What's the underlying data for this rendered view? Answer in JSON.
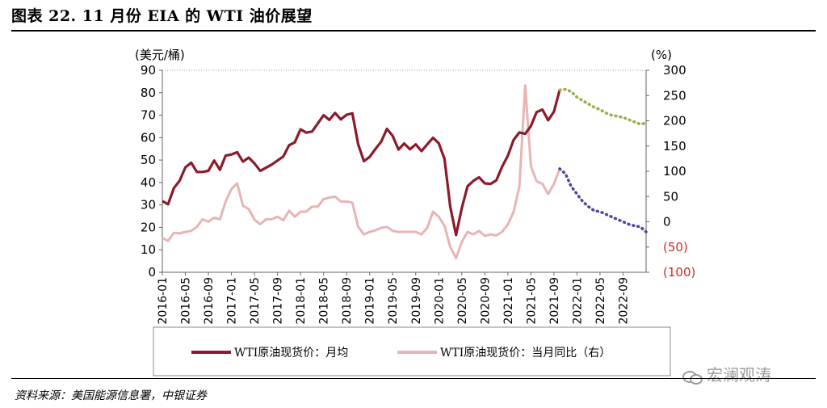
{
  "header": {
    "title": "图表 22. 11 月份 EIA 的 WTI 油价展望"
  },
  "footer": {
    "source": "资料来源：美国能源信息署，中银证券"
  },
  "watermark": {
    "text": "宏澜观涛",
    "icon": "wechat-icon"
  },
  "colors": {
    "wti_price": "#8b1a2b",
    "wti_yoy": "#e8b4b4",
    "forecast_price": "#9aae4c",
    "forecast_yoy": "#4a47a3",
    "negative_tick": "#d62728"
  },
  "chart_data": {
    "type": "line",
    "left_axis": {
      "unit": "(美元/桶)",
      "ylim": [
        0,
        90
      ],
      "ticks": [
        "0",
        "10",
        "20",
        "30",
        "40",
        "50",
        "60",
        "70",
        "80",
        "90"
      ]
    },
    "right_axis": {
      "unit": "(%)",
      "ylim": [
        -100,
        300
      ],
      "ticks": [
        "(100)",
        "(50)",
        "0",
        "50",
        "100",
        "150",
        "200",
        "250",
        "300"
      ]
    },
    "x_tick_labels": [
      "2016-01",
      "2016-05",
      "2016-09",
      "2017-01",
      "2017-05",
      "2017-09",
      "2018-01",
      "2018-05",
      "2018-09",
      "2019-01",
      "2019-05",
      "2019-09",
      "2020-01",
      "2020-05",
      "2020-09",
      "2021-01",
      "2021-05",
      "2021-09",
      "2022-01",
      "2022-05",
      "2022-09"
    ],
    "x_start": "2016-01",
    "series": [
      {
        "name": "WTI原油现货价：月均",
        "axis": "left",
        "values": [
          31.7,
          30.3,
          37.5,
          40.8,
          46.7,
          48.8,
          44.7,
          44.7,
          45.2,
          49.8,
          45.7,
          52.0,
          52.5,
          53.5,
          49.3,
          51.1,
          48.5,
          45.2,
          46.6,
          48.0,
          49.8,
          51.6,
          56.6,
          57.9,
          63.7,
          62.2,
          62.7,
          66.3,
          70.0,
          67.9,
          71.0,
          68.1,
          70.2,
          70.8,
          57.0,
          49.5,
          51.4,
          54.9,
          58.2,
          63.9,
          60.8,
          54.7,
          57.4,
          54.8,
          57.0,
          54.0,
          57.0,
          59.9,
          57.5,
          50.5,
          29.2,
          16.6,
          28.6,
          38.3,
          40.7,
          42.3,
          39.6,
          39.4,
          41.0,
          47.0,
          52.0,
          59.0,
          62.3,
          61.7,
          65.2,
          71.4,
          72.5,
          67.7,
          71.6,
          81.2
        ],
        "legend": "WTI原油现货价：月均"
      },
      {
        "name": "WTI原油现货价：当月同比（右）",
        "axis": "right",
        "values": [
          -32,
          -38,
          -22,
          -23,
          -20,
          -18,
          -10,
          5,
          0,
          8,
          5,
          40,
          65,
          76,
          32,
          25,
          4,
          -5,
          5,
          5,
          10,
          3,
          22,
          10,
          20,
          20,
          30,
          30,
          45,
          48,
          50,
          40,
          40,
          38,
          -10,
          -25,
          -20,
          -17,
          -12,
          -10,
          -18,
          -20,
          -20,
          -20,
          -20,
          -25,
          -12,
          20,
          10,
          -8,
          -50,
          -72,
          -40,
          -20,
          -25,
          -18,
          -28,
          -25,
          -27,
          -20,
          -5,
          20,
          70,
          270,
          110,
          80,
          75,
          55,
          75,
          105
        ],
        "legend": "WTI原油现货价：当月同比（右）"
      },
      {
        "name": "forecast-price",
        "axis": "left",
        "start_index": 69,
        "values": [
          81.2,
          81.5,
          80.5,
          78.0,
          76.5,
          75.0,
          73.5,
          72.5,
          71.0,
          70.0,
          69.5,
          69.0,
          68.0,
          67.0,
          66.0,
          66.5
        ]
      },
      {
        "name": "forecast-yoy",
        "axis": "right",
        "start_index": 69,
        "values": [
          105,
          95,
          70,
          55,
          40,
          30,
          22,
          20,
          15,
          10,
          5,
          0,
          -5,
          -8,
          -10,
          -20
        ]
      }
    ],
    "legend_placement": "bottom",
    "grid": false
  }
}
